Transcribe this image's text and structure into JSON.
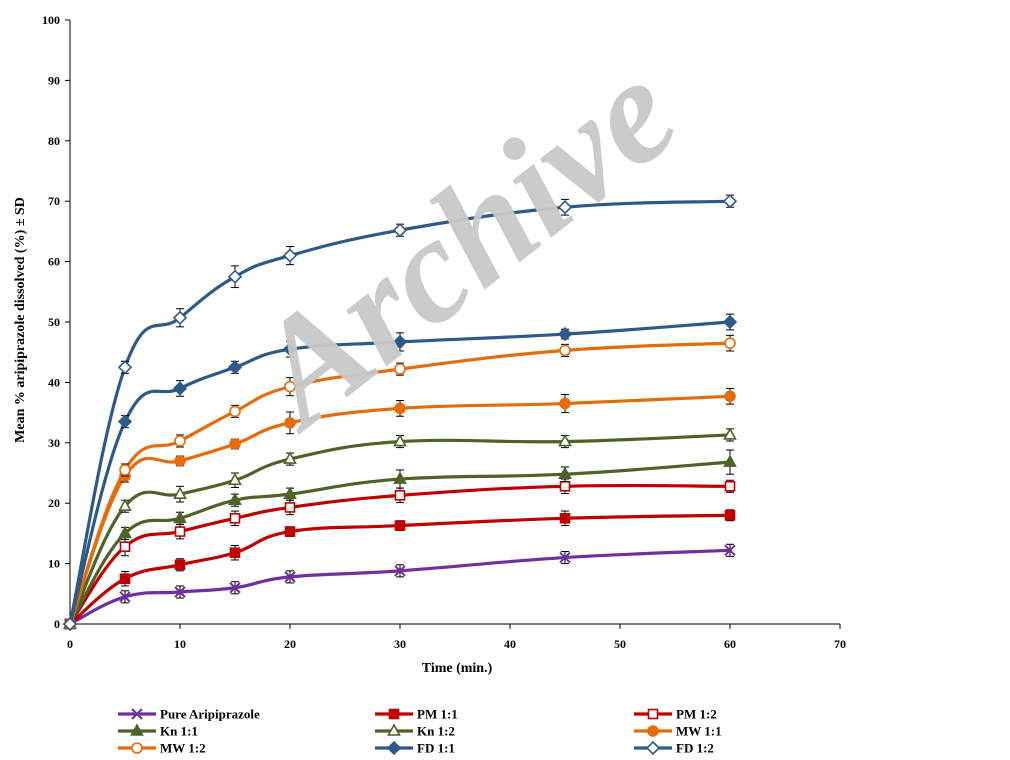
{
  "watermark": "Archive",
  "chart_data": {
    "type": "line",
    "xlabel": "Time (min.)",
    "ylabel": "Mean % aripiprazole dissolved (%) ± SD",
    "xlim": [
      0,
      70
    ],
    "ylim": [
      0,
      100
    ],
    "xticks": [
      0,
      10,
      20,
      30,
      40,
      50,
      60,
      70
    ],
    "yticks": [
      0,
      10,
      20,
      30,
      40,
      50,
      60,
      70,
      80,
      90,
      100
    ],
    "grid": false,
    "legend_position": "bottom",
    "x": [
      0,
      5,
      10,
      15,
      20,
      30,
      45,
      60
    ],
    "series": [
      {
        "name": "Pure Aripiprazole",
        "color": "#7030a0",
        "marker": "x",
        "values": [
          0,
          4.5,
          5.3,
          6.0,
          7.8,
          8.8,
          11.0,
          12.2
        ],
        "sd": [
          0.6,
          1.0,
          1.0,
          1.0,
          1.0,
          1.0,
          1.0,
          1.0
        ]
      },
      {
        "name": "PM 1:1",
        "color": "#c00000",
        "marker": "square-filled",
        "values": [
          0,
          7.5,
          9.8,
          11.8,
          15.3,
          16.3,
          17.5,
          18.0
        ],
        "sd": [
          0.5,
          1.2,
          1.0,
          1.2,
          0.8,
          0.8,
          1.2,
          0.9
        ]
      },
      {
        "name": "PM 1:2",
        "color": "#c00000",
        "marker": "square-open",
        "values": [
          0,
          12.8,
          15.3,
          17.5,
          19.3,
          21.3,
          22.8,
          22.8
        ],
        "sd": [
          0.5,
          1.5,
          1.2,
          1.2,
          1.2,
          1.2,
          1.2,
          1.0
        ]
      },
      {
        "name": "Kn 1:1",
        "color": "#4f6228",
        "marker": "triangle-filled",
        "values": [
          0,
          15.0,
          17.5,
          20.5,
          21.5,
          24.0,
          24.8,
          26.8
        ],
        "sd": [
          0.5,
          1.0,
          1.0,
          1.0,
          1.0,
          1.5,
          1.2,
          2.0
        ]
      },
      {
        "name": "Kn 1:2",
        "color": "#4f6228",
        "marker": "triangle-open",
        "values": [
          0,
          19.5,
          21.5,
          23.8,
          27.3,
          30.2,
          30.2,
          31.3
        ],
        "sd": [
          0.5,
          1.0,
          1.3,
          1.2,
          1.0,
          1.0,
          1.0,
          1.0
        ]
      },
      {
        "name": "MW 1:1",
        "color": "#e46c0a",
        "marker": "circle-filled",
        "values": [
          0,
          24.5,
          27.0,
          29.8,
          33.3,
          35.7,
          36.5,
          37.7
        ],
        "sd": [
          0.5,
          1.0,
          0.8,
          0.8,
          1.8,
          1.3,
          1.5,
          1.3
        ]
      },
      {
        "name": "MW 1:2",
        "color": "#e46c0a",
        "marker": "circle-open",
        "values": [
          0,
          25.5,
          30.3,
          35.2,
          39.3,
          42.2,
          45.3,
          46.5
        ],
        "sd": [
          0.5,
          1.0,
          1.0,
          1.0,
          1.5,
          1.0,
          1.0,
          1.3
        ]
      },
      {
        "name": "FD 1:1",
        "color": "#2e5a8a",
        "marker": "diamond-filled",
        "values": [
          0,
          33.5,
          39.0,
          42.5,
          45.5,
          46.7,
          48.0,
          50.0
        ],
        "sd": [
          0.5,
          1.0,
          1.3,
          1.0,
          1.3,
          1.5,
          0.8,
          1.3
        ]
      },
      {
        "name": "FD 1:2",
        "color": "#2e5a8a",
        "marker": "diamond-open",
        "values": [
          0,
          42.5,
          50.7,
          57.5,
          61.0,
          65.2,
          69.0,
          70.0
        ],
        "sd": [
          0.5,
          1.0,
          1.5,
          1.8,
          1.5,
          1.0,
          1.3,
          1.0
        ]
      }
    ]
  }
}
